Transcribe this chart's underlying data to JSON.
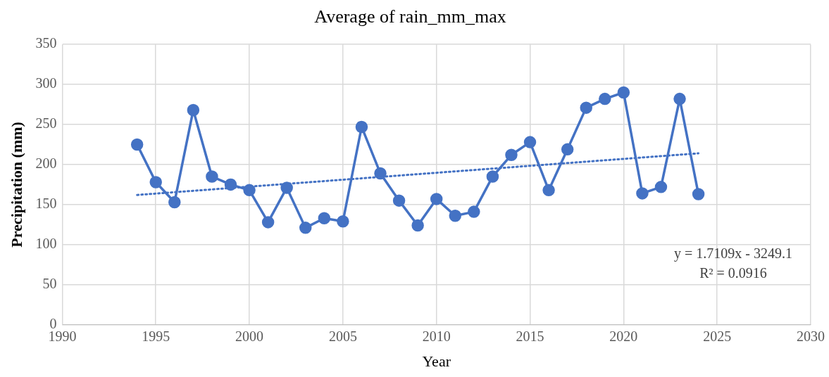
{
  "chart_data": {
    "type": "line",
    "title": "Average of rain_mm_max",
    "xlabel": "Year",
    "ylabel": "Precipitation (mm)",
    "x": [
      1994,
      1995,
      1996,
      1997,
      1998,
      1999,
      2000,
      2001,
      2002,
      2003,
      2004,
      2005,
      2006,
      2007,
      2008,
      2009,
      2010,
      2011,
      2012,
      2013,
      2014,
      2015,
      2016,
      2017,
      2018,
      2019,
      2020,
      2021,
      2022,
      2023,
      2024
    ],
    "series": [
      {
        "type": "line",
        "color": "#4472c4",
        "marker": "circle",
        "line_style": "solid",
        "values": [
          225,
          178,
          153,
          268,
          185,
          175,
          168,
          128,
          171,
          121,
          133,
          129,
          247,
          189,
          155,
          124,
          157,
          136,
          141,
          185,
          212,
          228,
          168,
          219,
          271,
          282,
          290,
          164,
          172,
          282,
          163
        ]
      },
      {
        "type": "line",
        "color": "#4472c4",
        "marker": "none",
        "line_style": "dotted",
        "x": [
          1994,
          2024
        ],
        "values": [
          162,
          214
        ]
      }
    ],
    "xlim": [
      1990,
      2030
    ],
    "xticks": [
      1990,
      1995,
      2000,
      2005,
      2010,
      2015,
      2020,
      2025,
      2030
    ],
    "ylim": [
      0,
      350
    ],
    "yticks": [
      0,
      50,
      100,
      150,
      200,
      250,
      300,
      350
    ],
    "grid": true,
    "legend": false,
    "annotations": [
      "y = 1.7109x - 3249.1",
      "R² = 0.0916"
    ]
  }
}
